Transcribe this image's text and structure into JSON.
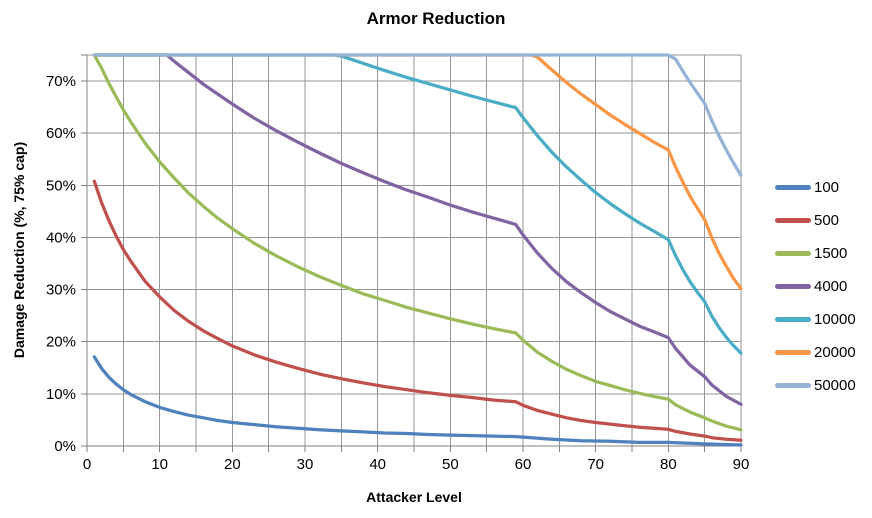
{
  "chart_data": {
    "type": "line",
    "title": "Armor Reduction",
    "xlabel": "Attacker Level",
    "ylabel": "Damage Reduction (%, 75% cap)",
    "xlim": [
      0,
      90
    ],
    "ylim": [
      0,
      75
    ],
    "grid": true,
    "legend_position": "right",
    "cap_percent": 75,
    "x_gridlines": [
      0,
      5,
      10,
      15,
      20,
      25,
      30,
      35,
      40,
      45,
      50,
      55,
      60,
      65,
      70,
      75,
      80,
      85,
      90
    ],
    "y_gridlines": [
      0,
      10,
      20,
      30,
      40,
      50,
      60,
      70,
      75
    ],
    "x_tick_values": [
      0,
      10,
      20,
      30,
      40,
      50,
      60,
      70,
      80,
      90
    ],
    "x_tick_labels": [
      "0",
      "10",
      "20",
      "30",
      "40",
      "50",
      "60",
      "70",
      "80",
      "90"
    ],
    "y_tick_values": [
      0,
      10,
      20,
      30,
      40,
      50,
      60,
      70
    ],
    "y_tick_labels": [
      "0%",
      "10%",
      "20%",
      "30%",
      "40%",
      "50%",
      "60%",
      "70%"
    ],
    "series": [
      {
        "name": "100",
        "color": "#4F81BD",
        "points": [
          [
            1,
            17.1
          ],
          [
            2,
            14.9
          ],
          [
            3,
            13.2
          ],
          [
            4,
            11.9
          ],
          [
            5,
            10.8
          ],
          [
            6,
            9.9
          ],
          [
            8,
            8.5
          ],
          [
            10,
            7.4
          ],
          [
            12,
            6.6
          ],
          [
            14,
            5.9
          ],
          [
            16,
            5.4
          ],
          [
            18,
            4.9
          ],
          [
            20,
            4.5
          ],
          [
            23,
            4.1
          ],
          [
            26,
            3.7
          ],
          [
            29,
            3.4
          ],
          [
            32,
            3.1
          ],
          [
            35,
            2.9
          ],
          [
            38,
            2.7
          ],
          [
            41,
            2.5
          ],
          [
            44,
            2.4
          ],
          [
            47,
            2.2
          ],
          [
            50,
            2.1
          ],
          [
            53,
            2.0
          ],
          [
            56,
            1.9
          ],
          [
            59,
            1.8
          ],
          [
            60,
            1.7
          ],
          [
            64,
            1.3
          ],
          [
            68,
            1.0
          ],
          [
            72,
            0.9
          ],
          [
            76,
            0.7
          ],
          [
            80,
            0.7
          ],
          [
            85,
            0.4
          ],
          [
            90,
            0.2
          ]
        ]
      },
      {
        "name": "500",
        "color": "#C0504D",
        "points": [
          [
            1,
            50.8
          ],
          [
            2,
            46.7
          ],
          [
            3,
            43.3
          ],
          [
            4,
            40.3
          ],
          [
            5,
            37.7
          ],
          [
            6,
            35.5
          ],
          [
            8,
            31.6
          ],
          [
            10,
            28.6
          ],
          [
            12,
            26.0
          ],
          [
            14,
            23.9
          ],
          [
            16,
            22.1
          ],
          [
            18,
            20.6
          ],
          [
            20,
            19.2
          ],
          [
            23,
            17.5
          ],
          [
            26,
            16.1
          ],
          [
            29,
            14.9
          ],
          [
            32,
            13.8
          ],
          [
            35,
            12.9
          ],
          [
            38,
            12.1
          ],
          [
            41,
            11.4
          ],
          [
            44,
            10.8
          ],
          [
            47,
            10.2
          ],
          [
            50,
            9.7
          ],
          [
            53,
            9.3
          ],
          [
            56,
            8.8
          ],
          [
            59,
            8.5
          ],
          [
            60,
            7.8
          ],
          [
            62,
            6.8
          ],
          [
            64,
            6.1
          ],
          [
            66,
            5.4
          ],
          [
            68,
            4.9
          ],
          [
            70,
            4.5
          ],
          [
            72,
            4.2
          ],
          [
            74,
            3.9
          ],
          [
            76,
            3.6
          ],
          [
            78,
            3.4
          ],
          [
            80,
            3.2
          ],
          [
            81,
            2.8
          ],
          [
            83,
            2.3
          ],
          [
            85,
            1.9
          ],
          [
            86,
            1.6
          ],
          [
            88,
            1.3
          ],
          [
            90,
            1.1
          ]
        ]
      },
      {
        "name": "1500",
        "color": "#9BBB59",
        "points": [
          [
            1,
            75
          ],
          [
            2,
            72.5
          ],
          [
            3,
            69.6
          ],
          [
            4,
            67.0
          ],
          [
            5,
            64.5
          ],
          [
            6,
            62.2
          ],
          [
            8,
            58.1
          ],
          [
            10,
            54.5
          ],
          [
            12,
            51.4
          ],
          [
            14,
            48.5
          ],
          [
            16,
            46.0
          ],
          [
            18,
            43.7
          ],
          [
            20,
            41.7
          ],
          [
            23,
            38.9
          ],
          [
            26,
            36.5
          ],
          [
            29,
            34.4
          ],
          [
            32,
            32.5
          ],
          [
            35,
            30.8
          ],
          [
            38,
            29.2
          ],
          [
            41,
            27.9
          ],
          [
            44,
            26.6
          ],
          [
            47,
            25.5
          ],
          [
            50,
            24.4
          ],
          [
            53,
            23.4
          ],
          [
            56,
            22.5
          ],
          [
            59,
            21.7
          ],
          [
            60,
            20.3
          ],
          [
            62,
            18.0
          ],
          [
            64,
            16.2
          ],
          [
            66,
            14.7
          ],
          [
            68,
            13.5
          ],
          [
            70,
            12.4
          ],
          [
            72,
            11.6
          ],
          [
            74,
            10.8
          ],
          [
            76,
            10.1
          ],
          [
            78,
            9.5
          ],
          [
            80,
            9.0
          ],
          [
            81,
            7.9
          ],
          [
            83,
            6.5
          ],
          [
            85,
            5.4
          ],
          [
            86,
            4.8
          ],
          [
            88,
            3.8
          ],
          [
            90,
            3.1
          ]
        ]
      },
      {
        "name": "4000",
        "color": "#8064A2",
        "points": [
          [
            1,
            75
          ],
          [
            11,
            75
          ],
          [
            12,
            73.8
          ],
          [
            14,
            71.6
          ],
          [
            16,
            69.4
          ],
          [
            18,
            67.5
          ],
          [
            20,
            65.6
          ],
          [
            23,
            62.9
          ],
          [
            26,
            60.5
          ],
          [
            29,
            58.3
          ],
          [
            32,
            56.2
          ],
          [
            35,
            54.2
          ],
          [
            38,
            52.4
          ],
          [
            41,
            50.7
          ],
          [
            44,
            49.1
          ],
          [
            47,
            47.7
          ],
          [
            50,
            46.2
          ],
          [
            53,
            44.9
          ],
          [
            56,
            43.7
          ],
          [
            59,
            42.5
          ],
          [
            60,
            40.5
          ],
          [
            62,
            37.0
          ],
          [
            64,
            34.0
          ],
          [
            66,
            31.5
          ],
          [
            68,
            29.4
          ],
          [
            70,
            27.5
          ],
          [
            72,
            25.8
          ],
          [
            74,
            24.4
          ],
          [
            76,
            23.0
          ],
          [
            78,
            21.9
          ],
          [
            80,
            20.8
          ],
          [
            81,
            18.7
          ],
          [
            83,
            15.5
          ],
          [
            85,
            13.3
          ],
          [
            86,
            11.7
          ],
          [
            88,
            9.5
          ],
          [
            90,
            8.0
          ]
        ]
      },
      {
        "name": "10000",
        "color": "#4BACC6",
        "points": [
          [
            1,
            75
          ],
          [
            34,
            75
          ],
          [
            35,
            74.8
          ],
          [
            38,
            73.4
          ],
          [
            41,
            72.0
          ],
          [
            44,
            70.7
          ],
          [
            47,
            69.5
          ],
          [
            50,
            68.3
          ],
          [
            53,
            67.1
          ],
          [
            56,
            66.0
          ],
          [
            59,
            64.9
          ],
          [
            60,
            63.0
          ],
          [
            62,
            59.5
          ],
          [
            64,
            56.3
          ],
          [
            66,
            53.5
          ],
          [
            68,
            51.0
          ],
          [
            70,
            48.6
          ],
          [
            72,
            46.5
          ],
          [
            74,
            44.6
          ],
          [
            76,
            42.8
          ],
          [
            78,
            41.2
          ],
          [
            80,
            39.6
          ],
          [
            81,
            36.5
          ],
          [
            82,
            33.8
          ],
          [
            83,
            31.5
          ],
          [
            84,
            29.5
          ],
          [
            85,
            27.7
          ],
          [
            86,
            24.9
          ],
          [
            87,
            22.7
          ],
          [
            88,
            20.8
          ],
          [
            89,
            19.2
          ],
          [
            90,
            17.8
          ]
        ]
      },
      {
        "name": "20000",
        "color": "#F79646",
        "points": [
          [
            1,
            75
          ],
          [
            61,
            75
          ],
          [
            62,
            74.6
          ],
          [
            64,
            72.1
          ],
          [
            66,
            69.7
          ],
          [
            68,
            67.5
          ],
          [
            70,
            65.5
          ],
          [
            72,
            63.5
          ],
          [
            74,
            61.7
          ],
          [
            76,
            60.0
          ],
          [
            78,
            58.3
          ],
          [
            80,
            56.8
          ],
          [
            81,
            53.5
          ],
          [
            82,
            50.6
          ],
          [
            83,
            47.9
          ],
          [
            84,
            45.6
          ],
          [
            85,
            43.4
          ],
          [
            86,
            39.9
          ],
          [
            87,
            36.9
          ],
          [
            88,
            34.4
          ],
          [
            89,
            32.1
          ],
          [
            90,
            30.2
          ]
        ]
      },
      {
        "name": "50000",
        "color": "#95B3D7",
        "points": [
          [
            1,
            75
          ],
          [
            80,
            75
          ],
          [
            81,
            74.2
          ],
          [
            82,
            71.9
          ],
          [
            83,
            69.7
          ],
          [
            84,
            67.7
          ],
          [
            85,
            65.7
          ],
          [
            86,
            62.4
          ],
          [
            87,
            59.4
          ],
          [
            88,
            56.7
          ],
          [
            89,
            54.2
          ],
          [
            90,
            51.9
          ]
        ]
      }
    ]
  },
  "colors": {
    "background": "#FFFFFF",
    "gridline": "#969696",
    "axis": "#808080",
    "text": "#000000"
  }
}
